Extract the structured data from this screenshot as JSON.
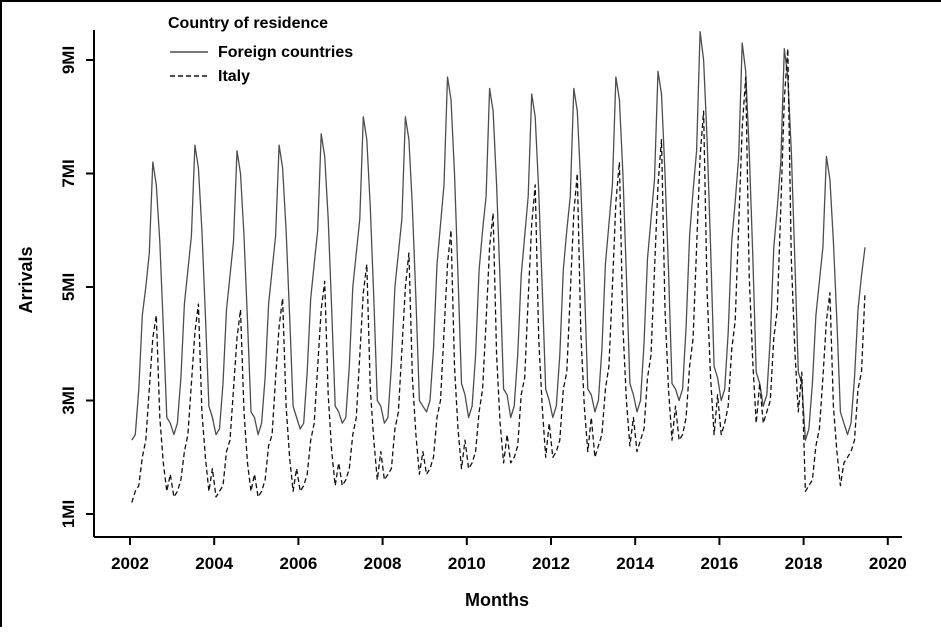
{
  "figure": {
    "ylabel": "Arrivals",
    "xlabel": "Months",
    "legend": {
      "title": "Country of residence",
      "entries": [
        {
          "label": "Foreign countries",
          "style": "solid"
        },
        {
          "label": "Italy",
          "style": "dashed"
        }
      ]
    },
    "yticks": [
      {
        "value": 1,
        "label": "1MI"
      },
      {
        "value": 3,
        "label": "3MI"
      },
      {
        "value": 5,
        "label": "5MI"
      },
      {
        "value": 7,
        "label": "7MI"
      },
      {
        "value": 9,
        "label": "9MI"
      }
    ],
    "xticks": [
      {
        "value": 2002,
        "label": "2002"
      },
      {
        "value": 2004,
        "label": "2004"
      },
      {
        "value": 2006,
        "label": "2006"
      },
      {
        "value": 2008,
        "label": "2008"
      },
      {
        "value": 2010,
        "label": "2010"
      },
      {
        "value": 2012,
        "label": "2012"
      },
      {
        "value": 2014,
        "label": "2014"
      },
      {
        "value": 2016,
        "label": "2016"
      },
      {
        "value": 2018,
        "label": "2018"
      },
      {
        "value": 2020,
        "label": "2020"
      }
    ],
    "colors": {
      "foreign_line": "#4d4d4d",
      "italy_line": "#111111",
      "axis": "#000000"
    }
  },
  "chart_data": {
    "type": "line",
    "title": "",
    "xlabel": "Months",
    "ylabel": "Arrivals",
    "unit": "millions of arrivals",
    "frequency": "monthly",
    "start_year": 2002,
    "xlim": [
      2002,
      2020
    ],
    "ylim": [
      1,
      9.6
    ],
    "grid": false,
    "legend_position": "top-left",
    "legend_title": "Country of residence",
    "series": [
      {
        "name": "Foreign countries",
        "style": "solid",
        "color": "#4d4d4d",
        "values": [
          2.3,
          2.4,
          3.2,
          4.5,
          5.0,
          5.6,
          7.2,
          6.8,
          5.8,
          4.3,
          2.7,
          2.6,
          2.4,
          2.6,
          3.4,
          4.7,
          5.3,
          5.9,
          7.5,
          7.1,
          6.0,
          4.5,
          2.9,
          2.7,
          2.4,
          2.5,
          3.3,
          4.6,
          5.2,
          5.8,
          7.4,
          7.0,
          5.9,
          4.4,
          2.8,
          2.7,
          2.4,
          2.6,
          3.4,
          4.7,
          5.3,
          5.9,
          7.5,
          7.1,
          6.0,
          4.5,
          2.9,
          2.7,
          2.5,
          2.6,
          3.5,
          4.8,
          5.4,
          6.0,
          7.7,
          7.3,
          6.2,
          4.6,
          2.9,
          2.8,
          2.6,
          2.7,
          3.6,
          5.0,
          5.6,
          6.2,
          8.0,
          7.6,
          6.4,
          4.8,
          3.0,
          2.9,
          2.6,
          2.7,
          3.6,
          5.0,
          5.6,
          6.2,
          8.0,
          7.6,
          6.4,
          4.8,
          3.0,
          2.9,
          2.8,
          3.0,
          3.9,
          5.4,
          6.1,
          6.8,
          8.7,
          8.3,
          7.0,
          5.2,
          3.3,
          3.1,
          2.7,
          2.9,
          3.8,
          5.3,
          6.0,
          6.6,
          8.5,
          8.1,
          6.8,
          5.1,
          3.2,
          3.1,
          2.7,
          2.9,
          3.8,
          5.2,
          5.9,
          6.6,
          8.4,
          8.0,
          6.7,
          5.0,
          3.2,
          3.0,
          2.7,
          2.9,
          3.8,
          5.3,
          6.0,
          6.6,
          8.5,
          8.1,
          6.8,
          5.1,
          3.2,
          3.1,
          2.8,
          3.0,
          3.9,
          5.4,
          6.1,
          6.8,
          8.7,
          8.3,
          7.0,
          5.2,
          3.3,
          3.1,
          2.8,
          3.0,
          4.0,
          5.5,
          6.2,
          6.9,
          8.8,
          8.4,
          7.0,
          5.3,
          3.3,
          3.2,
          3.0,
          3.2,
          4.3,
          5.9,
          6.7,
          7.4,
          9.5,
          9.0,
          7.6,
          5.7,
          3.6,
          3.4,
          3.0,
          3.2,
          4.2,
          5.8,
          6.5,
          7.3,
          9.3,
          8.8,
          7.4,
          5.6,
          3.5,
          3.3,
          2.9,
          3.1,
          4.1,
          5.7,
          6.4,
          7.2,
          9.2,
          8.7,
          7.4,
          5.5,
          3.5,
          3.3,
          2.3,
          2.5,
          3.3,
          4.5,
          5.1,
          5.7,
          7.3,
          6.9,
          5.8,
          4.4,
          2.8,
          2.6,
          2.4,
          2.6,
          3.4,
          4.6,
          5.2,
          5.7
        ]
      },
      {
        "name": "Italy",
        "style": "dashed",
        "color": "#111111",
        "values": [
          1.2,
          1.4,
          1.5,
          2.0,
          2.3,
          3.2,
          4.1,
          4.5,
          2.7,
          1.9,
          1.4,
          1.7,
          1.3,
          1.4,
          1.6,
          2.1,
          2.4,
          3.3,
          4.2,
          4.7,
          2.8,
          2.0,
          1.4,
          1.8,
          1.3,
          1.4,
          1.5,
          2.1,
          2.3,
          3.2,
          4.1,
          4.6,
          2.8,
          1.9,
          1.4,
          1.7,
          1.3,
          1.4,
          1.6,
          2.2,
          2.4,
          3.4,
          4.3,
          4.8,
          2.9,
          2.0,
          1.4,
          1.8,
          1.4,
          1.5,
          1.7,
          2.3,
          2.6,
          3.6,
          4.6,
          5.1,
          3.1,
          2.1,
          1.5,
          1.9,
          1.5,
          1.6,
          1.8,
          2.4,
          2.7,
          3.8,
          4.9,
          5.4,
          3.2,
          2.3,
          1.6,
          2.1,
          1.6,
          1.7,
          1.8,
          2.5,
          2.8,
          3.9,
          5.0,
          5.6,
          3.4,
          2.4,
          1.7,
          2.1,
          1.7,
          1.8,
          2.0,
          2.7,
          3.0,
          4.2,
          5.4,
          6.0,
          3.6,
          2.5,
          1.8,
          2.3,
          1.8,
          1.9,
          2.1,
          2.8,
          3.2,
          4.4,
          5.7,
          6.3,
          3.8,
          2.6,
          1.9,
          2.4,
          1.9,
          2.0,
          2.2,
          3.1,
          3.4,
          4.8,
          6.1,
          6.8,
          4.1,
          2.9,
          2.0,
          2.6,
          2.0,
          2.1,
          2.3,
          3.2,
          3.5,
          4.9,
          6.3,
          7.0,
          4.2,
          2.9,
          2.1,
          2.7,
          2.0,
          2.2,
          2.4,
          3.2,
          3.6,
          5.0,
          6.5,
          7.2,
          4.3,
          3.0,
          2.2,
          2.7,
          2.1,
          2.3,
          2.5,
          3.4,
          3.8,
          5.3,
          6.8,
          7.6,
          4.6,
          3.2,
          2.3,
          2.9,
          2.3,
          2.4,
          2.7,
          3.6,
          4.1,
          5.7,
          7.3,
          8.1,
          4.9,
          3.4,
          2.4,
          3.1,
          2.4,
          2.6,
          2.9,
          3.9,
          4.4,
          6.1,
          7.8,
          8.7,
          5.2,
          3.7,
          2.6,
          3.3,
          2.6,
          2.8,
          3.0,
          4.1,
          4.6,
          6.4,
          8.3,
          9.2,
          5.5,
          3.9,
          2.8,
          3.5,
          1.4,
          1.5,
          1.6,
          2.2,
          2.5,
          3.4,
          4.4,
          4.9,
          2.9,
          2.1,
          1.5,
          1.9,
          2.0,
          2.1,
          2.3,
          3.2,
          3.5,
          4.9
        ]
      }
    ]
  }
}
